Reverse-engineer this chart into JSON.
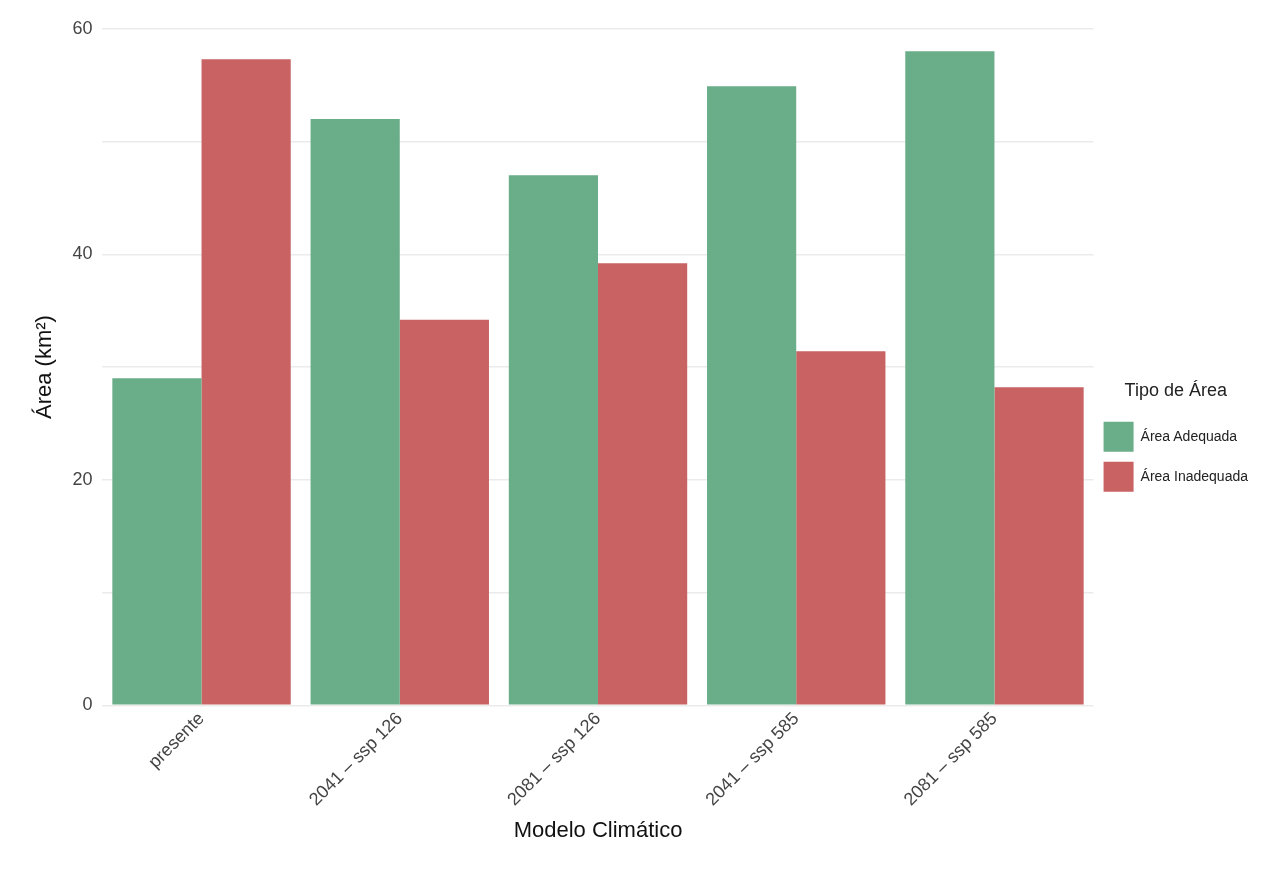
{
  "chart_data": {
    "type": "bar",
    "xlabel": "Modelo Climático",
    "ylabel": "Área (km²)",
    "legend_title": "Tipo de Área",
    "legend": "right",
    "categories": [
      "presente",
      "2041 – ssp 126",
      "2081 – ssp 126",
      "2041 – ssp 585",
      "2081 – ssp 585"
    ],
    "series": [
      {
        "name": "Área Adequada",
        "color": "#6aad89",
        "values": [
          29,
          52,
          47,
          54.9,
          58
        ]
      },
      {
        "name": "Área Inadequada",
        "color": "#c96262",
        "values": [
          57.3,
          34.2,
          39.2,
          31.4,
          28.2
        ]
      }
    ],
    "ylim": [
      0,
      60
    ],
    "yticks": [
      0,
      {
        "value": 10,
        "label": null
      },
      20,
      {
        "value": 30,
        "label": null
      },
      40,
      {
        "value": 50,
        "label": null
      },
      60
    ],
    "grid": "y"
  }
}
